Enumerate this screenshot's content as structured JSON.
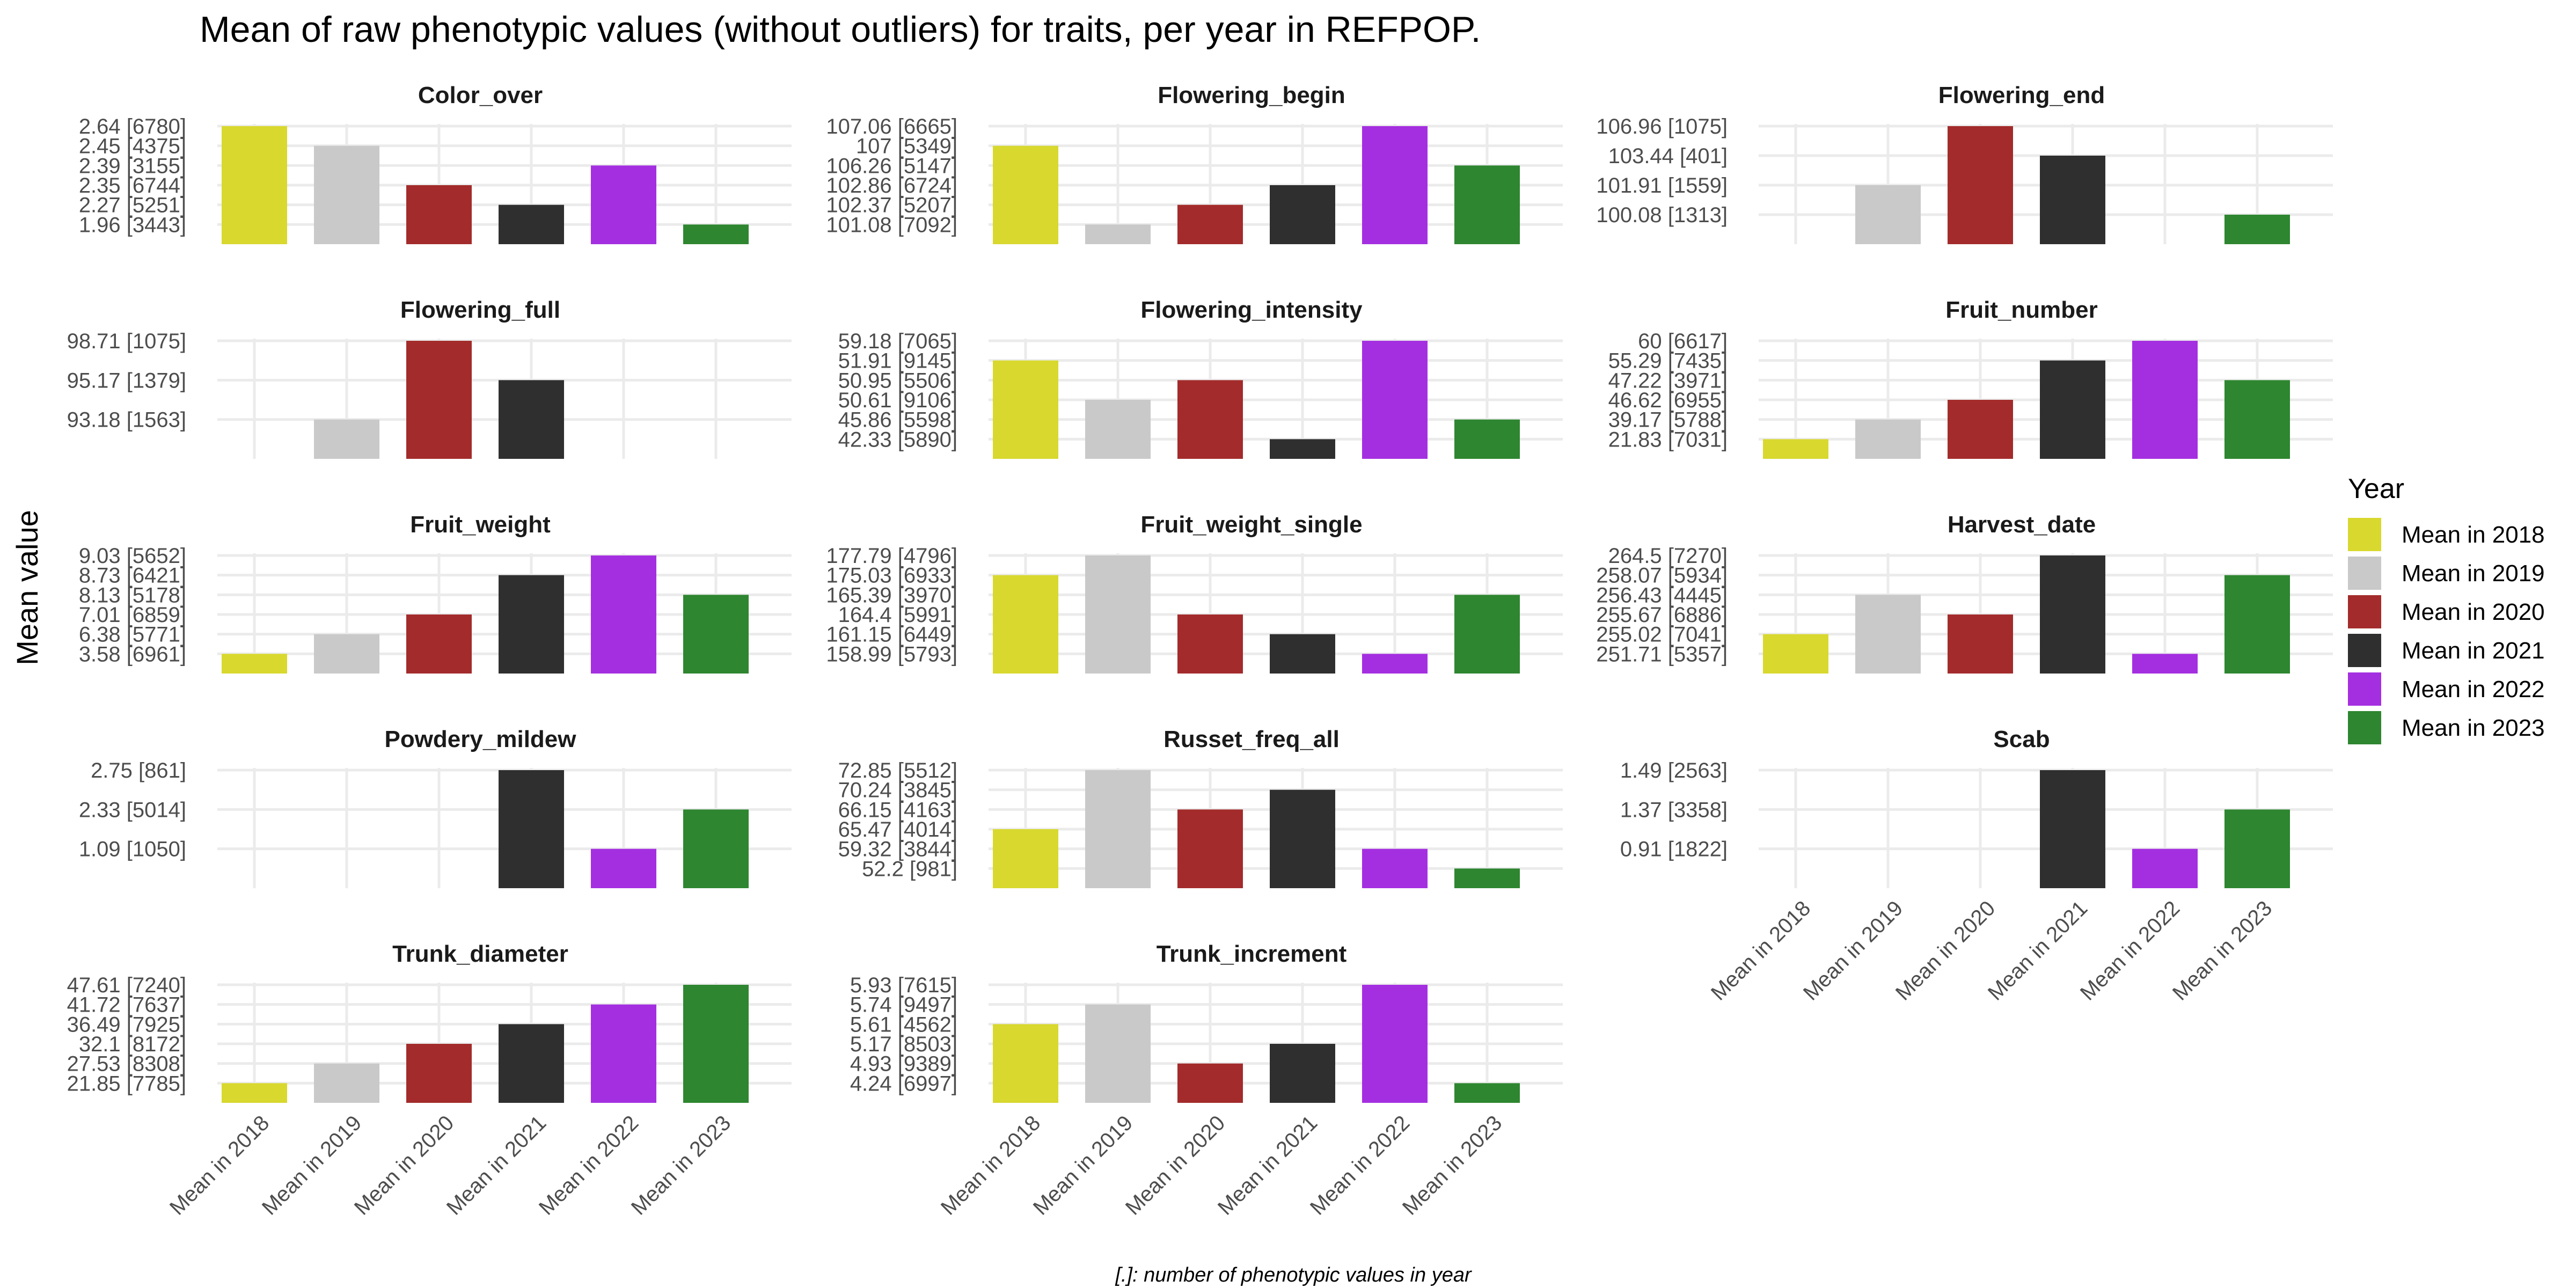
{
  "chart_data": {
    "type": "bar",
    "title": "Mean of raw phenotypic values (without outliers) for traits, per year in REFPOP.",
    "ylabel": "Mean value",
    "caption": "[.]: number of phenotypic values in year",
    "legend": {
      "title": "Year",
      "position": "right"
    },
    "categories": [
      "Mean in 2018",
      "Mean in 2019",
      "Mean in 2020",
      "Mean in 2021",
      "Mean in 2022",
      "Mean in 2023"
    ],
    "colors": [
      "#d8d82f",
      "#c9c9c9",
      "#a32b2b",
      "#2f2f2f",
      "#a42fe0",
      "#2e8630"
    ],
    "grid": true,
    "panels": [
      {
        "name": "Color_over",
        "values": [
          2.64,
          2.45,
          2.35,
          2.27,
          2.39,
          1.96
        ],
        "tick_labels": [
          "2.64 [6780]",
          "2.45 [4375]",
          "2.39 [3155]",
          "2.35 [6744]",
          "2.27 [5251]",
          "1.96 [3443]"
        ]
      },
      {
        "name": "Flowering_begin",
        "values": [
          107,
          101.08,
          102.37,
          102.86,
          107.06,
          106.26
        ],
        "tick_labels": [
          "107.06 [6665]",
          "107 [5349]",
          "106.26 [5147]",
          "102.86 [6724]",
          "102.37 [5207]",
          "101.08 [7092]"
        ]
      },
      {
        "name": "Flowering_end",
        "values": [
          null,
          101.91,
          106.96,
          103.44,
          null,
          100.08
        ],
        "tick_labels": [
          "106.96 [1075]",
          "103.44 [401]",
          "101.91 [1559]",
          "100.08 [1313]"
        ]
      },
      {
        "name": "Flowering_full",
        "values": [
          null,
          93.18,
          98.71,
          95.17,
          null,
          null
        ],
        "tick_labels": [
          "98.71 [1075]",
          "95.17 [1379]",
          "93.18 [1563]"
        ]
      },
      {
        "name": "Flowering_intensity",
        "values": [
          51.91,
          50.61,
          50.95,
          42.33,
          59.18,
          45.86
        ],
        "tick_labels": [
          "59.18 [7065]",
          "51.91 [9145]",
          "50.95 [5506]",
          "50.61 [9106]",
          "45.86 [5598]",
          "42.33 [5890]"
        ]
      },
      {
        "name": "Fruit_number",
        "values": [
          21.83,
          39.17,
          46.62,
          55.29,
          60,
          47.22
        ],
        "tick_labels": [
          "60 [6617]",
          "55.29 [7435]",
          "47.22 [3971]",
          "46.62 [6955]",
          "39.17 [5788]",
          "21.83 [7031]"
        ]
      },
      {
        "name": "Fruit_weight",
        "values": [
          3.58,
          6.38,
          7.01,
          8.73,
          9.03,
          8.13
        ],
        "tick_labels": [
          "9.03 [5652]",
          "8.73 [6421]",
          "8.13 [5178]",
          "7.01 [6859]",
          "6.38 [5771]",
          "3.58 [6961]"
        ]
      },
      {
        "name": "Fruit_weight_single",
        "values": [
          175.03,
          177.79,
          164.4,
          161.15,
          158.99,
          165.39
        ],
        "tick_labels": [
          "177.79 [4796]",
          "175.03 [6933]",
          "165.39 [3970]",
          "164.4 [5991]",
          "161.15 [6449]",
          "158.99 [5793]"
        ]
      },
      {
        "name": "Harvest_date",
        "values": [
          255.02,
          256.43,
          255.67,
          264.5,
          251.71,
          258.07
        ],
        "tick_labels": [
          "264.5 [7270]",
          "258.07 [5934]",
          "256.43 [4445]",
          "255.67 [6886]",
          "255.02 [7041]",
          "251.71 [5357]"
        ]
      },
      {
        "name": "Powdery_mildew",
        "values": [
          null,
          null,
          null,
          2.75,
          1.09,
          2.33
        ],
        "tick_labels": [
          "2.75 [861]",
          "2.33 [5014]",
          "1.09 [1050]"
        ]
      },
      {
        "name": "Russet_freq_all",
        "values": [
          65.47,
          72.85,
          66.15,
          70.24,
          59.32,
          52.2
        ],
        "tick_labels": [
          "72.85 [5512]",
          "70.24 [3845]",
          "66.15 [4163]",
          "65.47 [4014]",
          "59.32 [3844]",
          "52.2 [981]"
        ]
      },
      {
        "name": "Scab",
        "values": [
          null,
          null,
          null,
          1.49,
          0.91,
          1.37
        ],
        "tick_labels": [
          "1.49 [2563]",
          "1.37 [3358]",
          "0.91 [1822]"
        ]
      },
      {
        "name": "Trunk_diameter",
        "values": [
          21.85,
          27.53,
          32.1,
          36.49,
          41.72,
          47.61
        ],
        "tick_labels": [
          "47.61 [7240]",
          "41.72 [7637]",
          "36.49 [7925]",
          "32.1 [8172]",
          "27.53 [8308]",
          "21.85 [7785]"
        ]
      },
      {
        "name": "Trunk_increment",
        "values": [
          5.61,
          5.74,
          4.93,
          5.17,
          5.93,
          4.24
        ],
        "tick_labels": [
          "5.93 [7615]",
          "5.74 [9497]",
          "5.61 [4562]",
          "5.17 [8503]",
          "4.93 [9389]",
          "4.24 [6997]"
        ]
      }
    ]
  }
}
